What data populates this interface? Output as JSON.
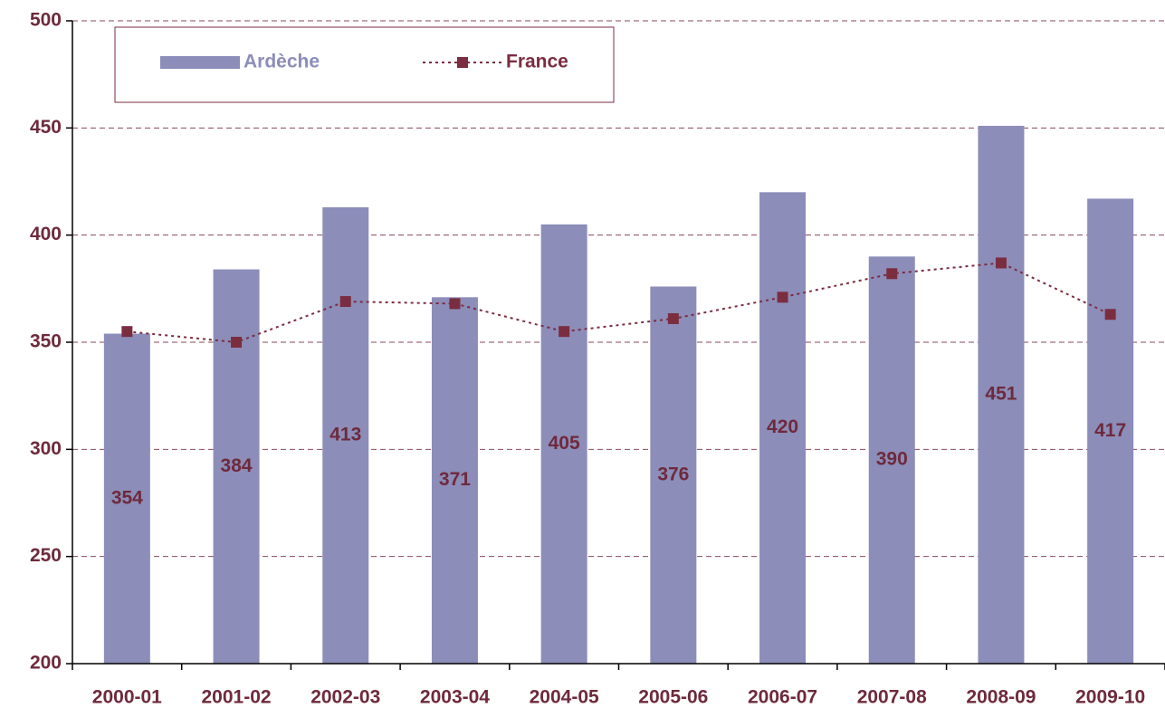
{
  "chart_data": {
    "type": "bar",
    "categories": [
      "2000-01",
      "2001-02",
      "2002-03",
      "2003-04",
      "2004-05",
      "2005-06",
      "2006-07",
      "2007-08",
      "2008-09",
      "2009-10"
    ],
    "series": [
      {
        "name": "Ardèche",
        "type": "bar",
        "color": "#8c8db9",
        "values": [
          354,
          384,
          413,
          371,
          405,
          376,
          420,
          390,
          451,
          417
        ]
      },
      {
        "name": "France",
        "type": "line",
        "color": "#7b2d40",
        "values": [
          355,
          350,
          369,
          368,
          355,
          361,
          371,
          382,
          387,
          363
        ]
      }
    ],
    "ylim": [
      200,
      500
    ],
    "yticks": [
      200,
      250,
      300,
      350,
      400,
      450,
      500
    ],
    "grid": true,
    "legend": "top-left"
  }
}
